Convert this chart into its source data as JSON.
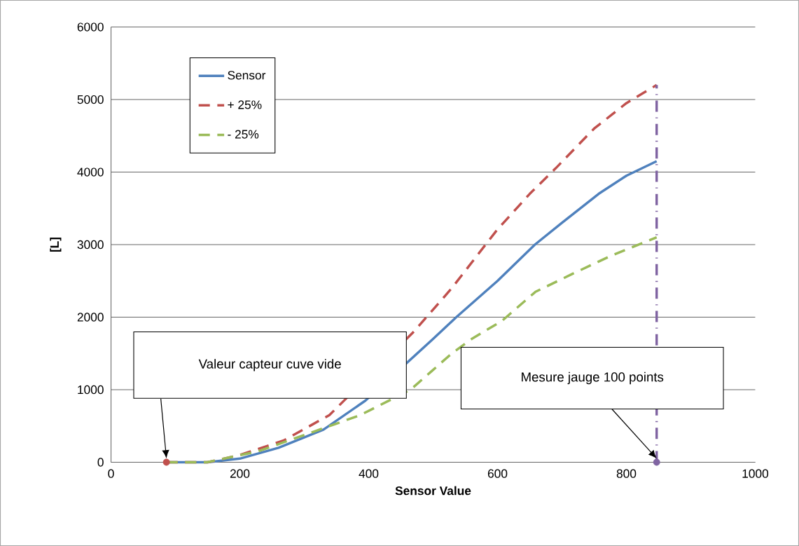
{
  "chart_data": {
    "type": "line",
    "xlabel": "Sensor Value",
    "ylabel": "[L]",
    "xlim": [
      0,
      1000
    ],
    "xticks": [
      0,
      200,
      400,
      600,
      800,
      1000
    ],
    "ylim": [
      0,
      6000
    ],
    "yticks": [
      0,
      1000,
      2000,
      3000,
      4000,
      5000,
      6000
    ],
    "grid": "y",
    "legend": "top left",
    "series": [
      {
        "name": "Sensor",
        "color": "#4f81bd",
        "line_style": "solid",
        "x": [
          86,
          150,
          200,
          260,
          330,
          395,
          500,
          536,
          600,
          658,
          700,
          757,
          800,
          847
        ],
        "values": [
          0,
          0,
          50,
          200,
          450,
          850,
          1700,
          2000,
          2500,
          3000,
          3300,
          3700,
          3950,
          4150
        ]
      },
      {
        "name": "+ 25%",
        "color": "#c0504d",
        "line_style": "dashed",
        "x": [
          86,
          150,
          200,
          268,
          339,
          470,
          529,
          599,
          650,
          690,
          750,
          800,
          847
        ],
        "values": [
          0,
          0,
          100,
          300,
          650,
          1800,
          2400,
          3200,
          3700,
          4050,
          4600,
          4950,
          5200
        ]
      },
      {
        "name": "- 25%",
        "color": "#9bbb59",
        "line_style": "dashed",
        "x": [
          86,
          149,
          228,
          308,
          387,
          465,
          497,
          529,
          560,
          607,
          659,
          717,
          777,
          847
        ],
        "values": [
          0,
          0,
          150,
          400,
          650,
          1000,
          1250,
          1500,
          1700,
          1950,
          2350,
          2600,
          2850,
          3100
        ]
      },
      {
        "type": "line",
        "color": "#8064a2",
        "line_style": "dashdot",
        "x": [
          847,
          847
        ],
        "values": [
          0,
          5200
        ]
      },
      {
        "type": "scatter",
        "colors": [
          "#c0504d",
          "#8064a2"
        ],
        "x": [
          86,
          847
        ],
        "values": [
          0,
          0
        ]
      }
    ],
    "annotations": [
      "Valeur capteur cuve vide",
      "Mesure jauge 100 points"
    ]
  }
}
